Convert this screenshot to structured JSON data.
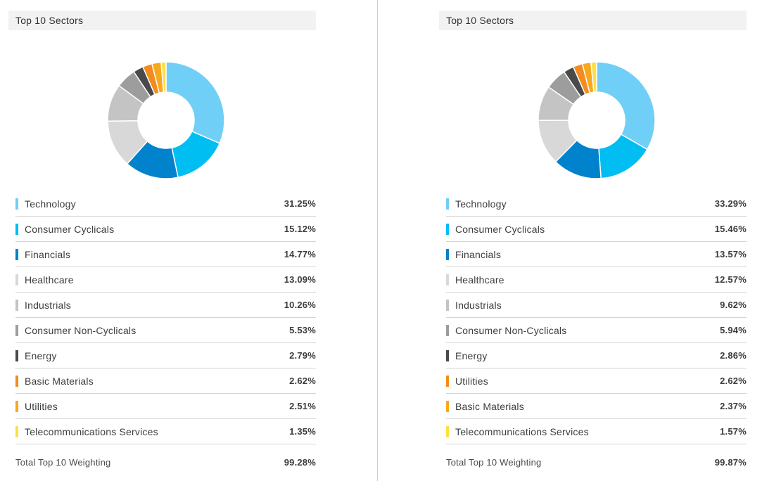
{
  "colors": {
    "technology": "#70cff7",
    "consumer_cyclicals": "#00bdf2",
    "financials": "#0082cc",
    "healthcare": "#d8d8d8",
    "industrials": "#c4c4c4",
    "consumer_non_cyclicals": "#9d9d9d",
    "energy": "#4a4a4a",
    "orange": "#f48b1f",
    "amber": "#f8a81f",
    "yellow": "#fde047"
  },
  "chart_data": [
    {
      "type": "pie",
      "title": "Top 10 Sectors",
      "donut": true,
      "categories": [
        "Technology",
        "Consumer Cyclicals",
        "Financials",
        "Healthcare",
        "Industrials",
        "Consumer Non-Cyclicals",
        "Energy",
        "Basic Materials",
        "Utilities",
        "Telecommunications Services"
      ],
      "values": [
        31.25,
        15.12,
        14.77,
        13.09,
        10.26,
        5.53,
        2.79,
        2.62,
        2.51,
        1.35
      ],
      "labels": [
        "31.25%",
        "15.12%",
        "14.77%",
        "13.09%",
        "10.26%",
        "5.53%",
        "2.79%",
        "2.62%",
        "2.51%",
        "1.35%"
      ],
      "colors": [
        "#70cff7",
        "#00bdf2",
        "#0082cc",
        "#d8d8d8",
        "#c4c4c4",
        "#9d9d9d",
        "#4a4a4a",
        "#f48b1f",
        "#f8a81f",
        "#fde047"
      ],
      "total_label": "Total Top 10 Weighting",
      "total_value": "99.28%"
    },
    {
      "type": "pie",
      "title": "Top 10 Sectors",
      "donut": true,
      "categories": [
        "Technology",
        "Consumer Cyclicals",
        "Financials",
        "Healthcare",
        "Industrials",
        "Consumer Non-Cyclicals",
        "Energy",
        "Utilities",
        "Basic Materials",
        "Telecommunications Services"
      ],
      "values": [
        33.29,
        15.46,
        13.57,
        12.57,
        9.62,
        5.94,
        2.86,
        2.62,
        2.37,
        1.57
      ],
      "labels": [
        "33.29%",
        "15.46%",
        "13.57%",
        "12.57%",
        "9.62%",
        "5.94%",
        "2.86%",
        "2.62%",
        "2.37%",
        "1.57%"
      ],
      "colors": [
        "#70cff7",
        "#00bdf2",
        "#0082cc",
        "#d8d8d8",
        "#c4c4c4",
        "#9d9d9d",
        "#4a4a4a",
        "#f48b1f",
        "#f8a81f",
        "#fde047"
      ],
      "total_label": "Total Top 10 Weighting",
      "total_value": "99.87%"
    }
  ]
}
